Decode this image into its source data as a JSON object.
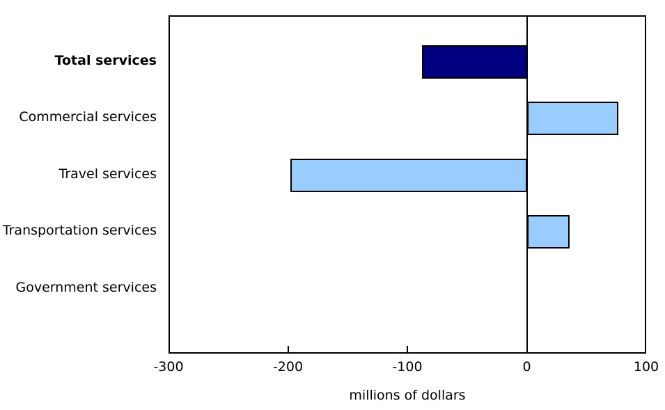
{
  "chart_data": {
    "type": "bar",
    "orientation": "horizontal",
    "categories": [
      "Total services",
      "Commercial services",
      "Travel services",
      "Transportation services",
      "Government services"
    ],
    "values": [
      -88,
      76,
      -198,
      35,
      0
    ],
    "highlight_index": 0,
    "title": "",
    "xlabel": "millions of dollars",
    "ylabel": "",
    "xlim": [
      -300,
      100
    ],
    "xticks": [
      -300,
      -200,
      -100,
      0,
      100
    ],
    "xtick_labels": [
      "-300",
      "-200",
      "-100",
      "0",
      "100"
    ],
    "grid": false,
    "legend": false,
    "colors": {
      "highlight_bar": "#000080",
      "component_bar": "#99ccff",
      "bar_border": "#000000",
      "axis": "#000000",
      "background": "#ffffff",
      "text": "#000000"
    }
  }
}
